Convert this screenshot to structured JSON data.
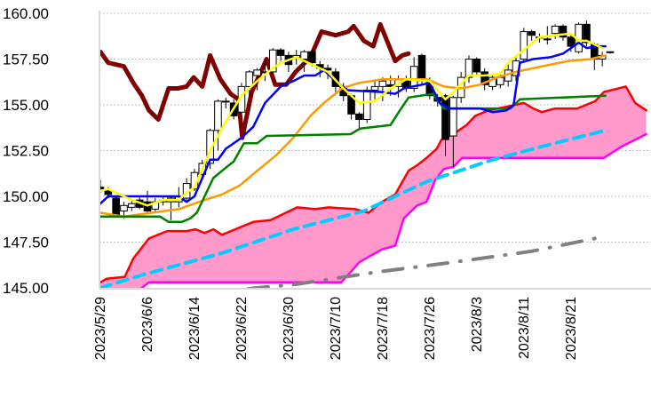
{
  "chart_data": {
    "type": "candlestick-ichimoku",
    "title": "",
    "xlabel": "",
    "ylabel": "",
    "ylim": [
      145,
      160
    ],
    "yticks": [
      "145.00",
      "147.50",
      "150.00",
      "152.50",
      "155.00",
      "157.50",
      "160.00"
    ],
    "ytick_values": [
      145,
      147.5,
      150,
      152.5,
      155,
      157.5,
      160
    ],
    "xlim": [
      -0.6,
      70
    ],
    "xtick_labels": [
      "2023/5/29",
      "2023/6/6",
      "2023/6/14",
      "2023/6/22",
      "2023/6/30",
      "2023/7/10",
      "2023/7/18",
      "2023/7/26",
      "2023/8/3",
      "2023/8/11",
      "2023/8/21"
    ],
    "xtick_index": [
      0,
      6,
      12,
      18,
      24,
      30,
      36,
      42,
      48,
      54,
      60
    ],
    "grid": true,
    "colors": {
      "cloud_fill": "#ff99cc",
      "span_a": "#ff0000",
      "span_b": "#ff00ff",
      "lagging": "#800000",
      "tenkan": "#ffff00",
      "kijun": "#0000ff",
      "ma_orange": "#ff9900",
      "ma_green": "#008000",
      "trend_cyan": "#00ccff",
      "trend_gray": "#808080",
      "grid": "#c0c0c0"
    },
    "candles_ohlc": [
      [
        150.5,
        150.9,
        150.2,
        150.4
      ],
      [
        150.3,
        150.5,
        149.9,
        150.1
      ],
      [
        149.9,
        150.0,
        148.9,
        149.0
      ],
      [
        149.2,
        149.7,
        148.8,
        149.5
      ],
      [
        149.4,
        149.8,
        149.2,
        149.6
      ],
      [
        149.8,
        150.0,
        149.3,
        149.4
      ],
      [
        149.7,
        150.3,
        149.1,
        149.2
      ],
      [
        149.3,
        149.9,
        149.1,
        149.7
      ],
      [
        149.7,
        150.0,
        149.5,
        149.8
      ],
      [
        149.7,
        150.0,
        148.7,
        149.9
      ],
      [
        149.7,
        150.5,
        149.4,
        150.0
      ],
      [
        149.9,
        151.0,
        149.8,
        150.7
      ],
      [
        150.4,
        151.5,
        150.3,
        151.3
      ],
      [
        151.2,
        152.0,
        151.0,
        151.8
      ],
      [
        151.8,
        153.7,
        151.5,
        153.6
      ],
      [
        153.6,
        155.3,
        152.5,
        155.2
      ],
      [
        155.2,
        155.4,
        154.8,
        155.2
      ],
      [
        155.1,
        155.3,
        154.2,
        154.4
      ],
      [
        154.6,
        156.2,
        154.3,
        156.0
      ],
      [
        156.0,
        156.9,
        155.5,
        156.8
      ],
      [
        156.6,
        157.0,
        155.8,
        156.9
      ],
      [
        156.8,
        157.4,
        156.3,
        156.8
      ],
      [
        156.8,
        158.1,
        156.6,
        158.0
      ],
      [
        158.0,
        158.1,
        157.4,
        157.7
      ],
      [
        157.7,
        157.9,
        156.8,
        157.2
      ],
      [
        157.6,
        158.0,
        157.2,
        157.7
      ],
      [
        157.5,
        158.0,
        156.8,
        157.9
      ],
      [
        157.9,
        158.0,
        157.1,
        157.3
      ],
      [
        157.2,
        157.4,
        156.5,
        157.0
      ],
      [
        157.0,
        157.2,
        156.4,
        156.9
      ],
      [
        156.8,
        157.0,
        155.7,
        156.0
      ],
      [
        156.0,
        156.2,
        155.2,
        155.5
      ],
      [
        155.5,
        155.6,
        154.2,
        154.5
      ],
      [
        154.5,
        154.6,
        153.6,
        154.2
      ],
      [
        154.2,
        156.0,
        154.0,
        155.8
      ],
      [
        155.8,
        156.3,
        155.3,
        156.0
      ],
      [
        156.0,
        156.5,
        155.2,
        156.3
      ],
      [
        156.1,
        156.6,
        155.5,
        156.0
      ],
      [
        156.0,
        156.6,
        155.4,
        156.4
      ],
      [
        156.4,
        156.6,
        155.7,
        155.9
      ],
      [
        155.9,
        157.6,
        155.7,
        157.1
      ],
      [
        157.7,
        157.8,
        156.1,
        156.3
      ],
      [
        156.3,
        156.5,
        155.3,
        155.5
      ],
      [
        155.4,
        155.6,
        154.9,
        155.2
      ],
      [
        155.5,
        155.6,
        152.2,
        153.1
      ],
      [
        153.3,
        155.5,
        151.6,
        155.4
      ],
      [
        155.4,
        156.8,
        155.1,
        156.5
      ],
      [
        156.5,
        157.7,
        156.2,
        157.5
      ],
      [
        157.5,
        157.6,
        156.6,
        156.8
      ],
      [
        156.8,
        157.0,
        155.8,
        156.1
      ],
      [
        156.0,
        156.7,
        155.8,
        156.5
      ],
      [
        156.1,
        156.8,
        155.9,
        156.5
      ],
      [
        156.3,
        157.2,
        156.0,
        156.9
      ],
      [
        156.6,
        157.7,
        156.3,
        157.4
      ],
      [
        157.5,
        159.2,
        157.3,
        159.0
      ],
      [
        159.0,
        159.1,
        158.5,
        158.8
      ],
      [
        158.7,
        158.9,
        158.4,
        158.7
      ],
      [
        158.6,
        159.3,
        158.3,
        158.6
      ],
      [
        158.9,
        159.4,
        158.6,
        159.3
      ],
      [
        159.3,
        159.4,
        158.5,
        158.7
      ],
      [
        158.7,
        158.8,
        157.9,
        158.2
      ],
      [
        157.9,
        159.5,
        157.8,
        159.4
      ],
      [
        159.4,
        159.6,
        158.2,
        158.4
      ],
      [
        158.3,
        158.4,
        156.9,
        157.5
      ],
      [
        157.5,
        157.9,
        157.1,
        157.7
      ],
      [
        157.9,
        157.9,
        157.8,
        157.9
      ]
    ],
    "lines": {
      "span_a": [
        [
          0,
          145.3
        ],
        [
          0.8,
          145.5
        ],
        [
          3.1,
          145.6
        ],
        [
          4.2,
          146.6
        ],
        [
          6.2,
          147.7
        ],
        [
          8.5,
          148.1
        ],
        [
          11,
          148.1
        ],
        [
          12.1,
          148.2
        ],
        [
          13.3,
          148.0
        ],
        [
          14.4,
          148.2
        ],
        [
          15.5,
          147.9
        ],
        [
          17.2,
          148.2
        ],
        [
          19.5,
          148.6
        ],
        [
          21.7,
          148.7
        ],
        [
          25.1,
          149.4
        ],
        [
          27.4,
          149.3
        ],
        [
          29.1,
          149.4
        ],
        [
          32.5,
          149.3
        ],
        [
          34.2,
          149.1
        ],
        [
          35.9,
          149.7
        ],
        [
          37.6,
          150.1
        ],
        [
          39.3,
          151.4
        ],
        [
          40.4,
          151.7
        ],
        [
          41.6,
          152.1
        ],
        [
          42.9,
          152.6
        ],
        [
          43.5,
          153.1
        ],
        [
          45,
          153.4
        ],
        [
          46.7,
          153.9
        ],
        [
          47.8,
          154.4
        ],
        [
          49.5,
          154.7
        ],
        [
          51.8,
          154.9
        ],
        [
          54,
          155.1
        ],
        [
          55.2,
          154.8
        ],
        [
          56.3,
          154.6
        ],
        [
          58,
          154.8
        ],
        [
          60.8,
          154.8
        ],
        [
          63.1,
          155.2
        ],
        [
          64.2,
          155.7
        ],
        [
          67,
          156.0
        ],
        [
          68.2,
          155.1
        ],
        [
          69.6,
          154.7
        ]
      ],
      "span_b": [
        [
          0,
          144.5
        ],
        [
          5,
          144.9
        ],
        [
          6.2,
          145.3
        ],
        [
          30.7,
          145.3
        ],
        [
          32,
          145.9
        ],
        [
          33,
          146.4
        ],
        [
          35.9,
          147.1
        ],
        [
          37.6,
          147.3
        ],
        [
          38.7,
          148.8
        ],
        [
          40.4,
          149.5
        ],
        [
          41.6,
          149.7
        ],
        [
          42.7,
          150.9
        ],
        [
          43.8,
          151.5
        ],
        [
          45,
          151.6
        ],
        [
          46.1,
          152.1
        ],
        [
          64.2,
          152.1
        ],
        [
          66.4,
          152.7
        ],
        [
          69.6,
          153.4
        ]
      ],
      "trend_cyan": [
        [
          0,
          145.0
        ],
        [
          5.3,
          145.7
        ],
        [
          15.5,
          146.9
        ],
        [
          24.6,
          148.2
        ],
        [
          33.6,
          149.2
        ],
        [
          41.6,
          150.8
        ],
        [
          50,
          152.0
        ],
        [
          57,
          152.8
        ],
        [
          64.4,
          153.6
        ]
      ],
      "trend_gray": [
        [
          18.9,
          144.95
        ],
        [
          25,
          145.2
        ],
        [
          35,
          145.85
        ],
        [
          45,
          146.4
        ],
        [
          55,
          147.0
        ],
        [
          63.1,
          147.7
        ]
      ],
      "ma_orange": [
        [
          0,
          149.1
        ],
        [
          3,
          148.9
        ],
        [
          6.5,
          149.1
        ],
        [
          10,
          149.3
        ],
        [
          13.3,
          149.8
        ],
        [
          15.5,
          150.1
        ],
        [
          17.8,
          150.6
        ],
        [
          20,
          151.4
        ],
        [
          22.3,
          152.2
        ],
        [
          24.6,
          153.2
        ],
        [
          26.8,
          154.4
        ],
        [
          28.5,
          155.1
        ],
        [
          30.8,
          155.9
        ],
        [
          33,
          156.2
        ],
        [
          36,
          156.4
        ],
        [
          39.3,
          156.4
        ],
        [
          41.6,
          156.4
        ],
        [
          42.7,
          156.2
        ],
        [
          43.8,
          156.0
        ],
        [
          46,
          155.9
        ],
        [
          48.4,
          156.1
        ],
        [
          50.6,
          156.5
        ],
        [
          53,
          156.8
        ],
        [
          56.3,
          157.1
        ],
        [
          59.7,
          157.4
        ],
        [
          62.5,
          157.5
        ],
        [
          64.4,
          157.7
        ]
      ],
      "ma_green": [
        [
          0,
          148.9
        ],
        [
          7.6,
          148.9
        ],
        [
          8.7,
          148.6
        ],
        [
          10.4,
          148.6
        ],
        [
          11.5,
          148.8
        ],
        [
          12.3,
          149.1
        ],
        [
          14.4,
          151.0
        ],
        [
          16.1,
          151.6
        ],
        [
          17,
          151.9
        ],
        [
          18.3,
          152.9
        ],
        [
          20,
          152.9
        ],
        [
          21.2,
          153.3
        ],
        [
          31.9,
          153.4
        ],
        [
          33.1,
          153.7
        ],
        [
          37,
          153.9
        ],
        [
          38.2,
          154.7
        ],
        [
          39.3,
          155.4
        ],
        [
          42.4,
          155.6
        ],
        [
          43.8,
          154.8
        ],
        [
          52.3,
          154.8
        ],
        [
          53.5,
          155.3
        ],
        [
          64.4,
          155.5
        ]
      ],
      "kijun": [
        [
          0,
          149.6
        ],
        [
          1,
          150.0
        ],
        [
          10,
          150.0
        ],
        [
          11,
          149.7
        ],
        [
          12,
          150.0
        ],
        [
          14,
          152.0
        ],
        [
          15,
          152.0
        ],
        [
          16,
          152.6
        ],
        [
          18,
          153.2
        ],
        [
          19.5,
          153.8
        ],
        [
          21,
          155.1
        ],
        [
          23,
          156.0
        ],
        [
          24.6,
          156.3
        ],
        [
          26,
          156.6
        ],
        [
          27.4,
          156.6
        ],
        [
          28.5,
          156.9
        ],
        [
          30,
          156.3
        ],
        [
          31.4,
          155.8
        ],
        [
          35.9,
          155.7
        ],
        [
          37.6,
          155.6
        ],
        [
          38.7,
          155.9
        ],
        [
          41,
          156.1
        ],
        [
          42,
          156.2
        ],
        [
          43.3,
          155.1
        ],
        [
          44.4,
          154.8
        ],
        [
          48.4,
          154.8
        ],
        [
          50,
          154.6
        ],
        [
          51.8,
          154.7
        ],
        [
          52.7,
          155.0
        ],
        [
          53.5,
          157.3
        ],
        [
          55.2,
          157.5
        ],
        [
          57.4,
          157.6
        ],
        [
          59,
          157.8
        ],
        [
          61,
          158.4
        ],
        [
          62,
          158.1
        ],
        [
          63.3,
          158.2
        ],
        [
          64.4,
          158.2
        ]
      ],
      "tenkan": [
        [
          0,
          150.3
        ],
        [
          1,
          150.4
        ],
        [
          4,
          149.8
        ],
        [
          6,
          149.5
        ],
        [
          8,
          149.8
        ],
        [
          10,
          149.8
        ],
        [
          11,
          150.2
        ],
        [
          12,
          150.5
        ],
        [
          14,
          152.5
        ],
        [
          16,
          154.1
        ],
        [
          18,
          155.5
        ],
        [
          20,
          156.3
        ],
        [
          22,
          157.0
        ],
        [
          23,
          157.3
        ],
        [
          25,
          157.6
        ],
        [
          27,
          157.2
        ],
        [
          29,
          156.8
        ],
        [
          31,
          155.9
        ],
        [
          33,
          155.1
        ],
        [
          35,
          155.2
        ],
        [
          37,
          155.9
        ],
        [
          39,
          156.4
        ],
        [
          42,
          156.3
        ],
        [
          44,
          155.3
        ],
        [
          45,
          155.7
        ],
        [
          47,
          156.6
        ],
        [
          49,
          156.6
        ],
        [
          51,
          156.7
        ],
        [
          52,
          157.3
        ],
        [
          54,
          158.0
        ],
        [
          56,
          158.7
        ],
        [
          58,
          158.8
        ],
        [
          60,
          158.9
        ],
        [
          61,
          158.5
        ],
        [
          62,
          158.5
        ],
        [
          64,
          158.1
        ]
      ],
      "lagging": [
        [
          0,
          157.9
        ],
        [
          1,
          157.3
        ],
        [
          3,
          157.1
        ],
        [
          4.2,
          156.2
        ],
        [
          5.3,
          155.5
        ],
        [
          6.2,
          154.7
        ],
        [
          7.4,
          154.2
        ],
        [
          8.7,
          155.9
        ],
        [
          9.9,
          155.9
        ],
        [
          11,
          156.0
        ],
        [
          11.9,
          156.5
        ],
        [
          13,
          156.0
        ],
        [
          14,
          157.7
        ],
        [
          15.3,
          156.4
        ],
        [
          16.6,
          155.6
        ],
        [
          17.6,
          155.3
        ],
        [
          18.1,
          153.2
        ],
        [
          19.3,
          155.7
        ],
        [
          21.2,
          157.5
        ],
        [
          22.3,
          156.1
        ],
        [
          23.7,
          156.1
        ],
        [
          24.9,
          156.8
        ],
        [
          26.8,
          157.6
        ],
        [
          28.2,
          159.0
        ],
        [
          30,
          158.8
        ],
        [
          31.6,
          159.0
        ],
        [
          32.3,
          159.3
        ],
        [
          33.6,
          158.5
        ],
        [
          34.8,
          158.2
        ],
        [
          35.7,
          159.4
        ],
        [
          37.6,
          157.4
        ],
        [
          38.5,
          157.7
        ],
        [
          39.3,
          157.8
        ]
      ]
    }
  }
}
